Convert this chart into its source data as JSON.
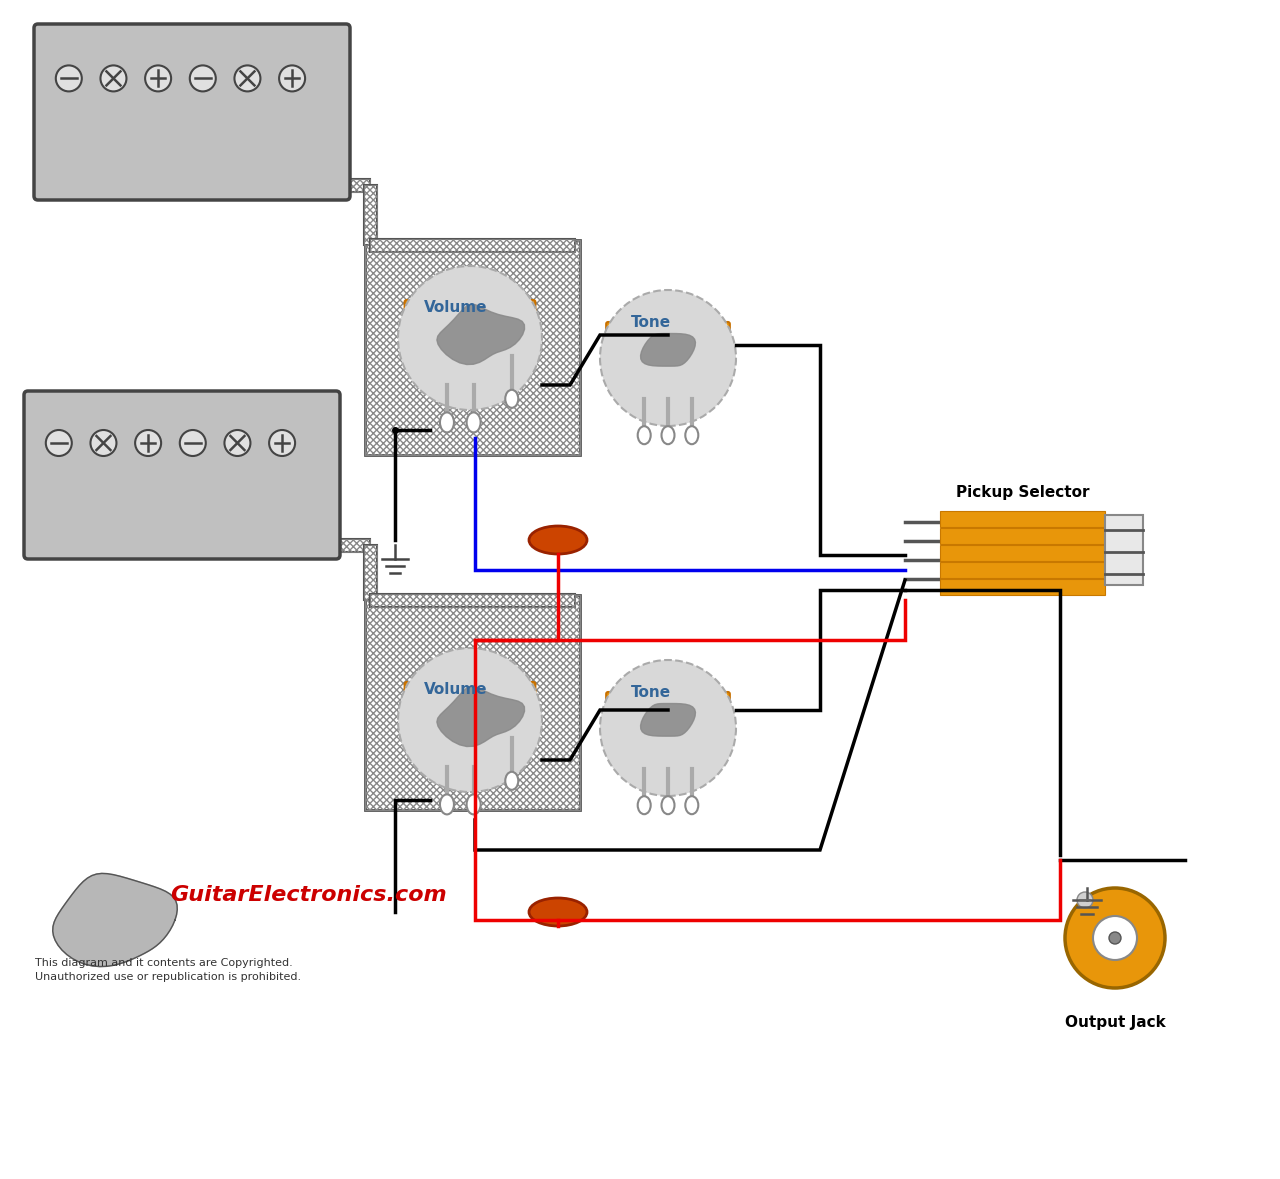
{
  "bg_color": "#ffffff",
  "pickup_color": "#c0c0c0",
  "pickup_border": "#555555",
  "pot_body_color": "#e8960a",
  "pot_face_color": "#d8d8d8",
  "wire_black": "#000000",
  "wire_blue": "#0000ee",
  "wire_red": "#ee0000",
  "cap_color": "#cc4400",
  "selector_color": "#e8960a",
  "jack_color": "#e8960a",
  "vol1_label": "Volume",
  "vol2_label": "Volume",
  "tone1_label": "Tone",
  "tone2_label": "Tone",
  "selector_label": "Pickup Selector",
  "jack_label": "Output Jack",
  "title_text": "GuitarElectronics.com",
  "copyright_text": "This diagram and it contents are Copyrighted.\nUnauthorized use or republication is prohibited."
}
